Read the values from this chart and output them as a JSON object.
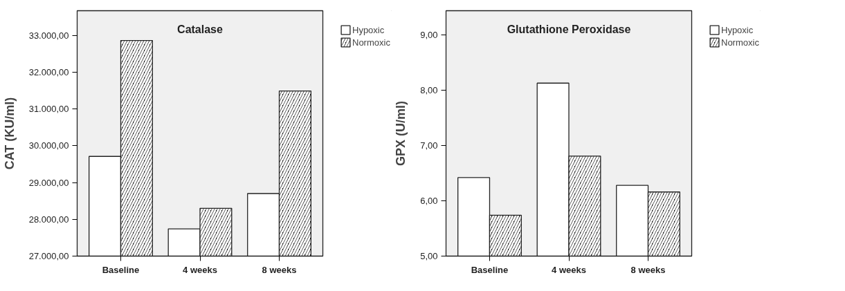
{
  "chart_data": [
    {
      "type": "bar",
      "title": "Catalase",
      "ylabel": "CAT (KU/ml)",
      "categories": [
        "Baseline",
        "4 weeks",
        "8 weeks"
      ],
      "series": [
        {
          "name": "Hypoxic",
          "color": "#ffffff",
          "values": [
            29710,
            27740,
            28700
          ]
        },
        {
          "name": "Normoxic",
          "color": "#000000",
          "values": [
            32860,
            28300,
            31490
          ]
        }
      ],
      "ylim": [
        27000,
        33670
      ],
      "yticks": [
        {
          "value": 27000,
          "label": "27.000,00"
        },
        {
          "value": 28000,
          "label": "28.000,00"
        },
        {
          "value": 29000,
          "label": "29.000,00"
        },
        {
          "value": 30000,
          "label": "30.000,00"
        },
        {
          "value": 31000,
          "label": "31.000,00"
        },
        {
          "value": 32000,
          "label": "32.000,00"
        },
        {
          "value": 33000,
          "label": "33.000,00"
        }
      ],
      "grid": false,
      "legend": "top right"
    },
    {
      "type": "bar",
      "title": "Glutathione Peroxidase",
      "ylabel": "GPX (U/ml)",
      "categories": [
        "Baseline",
        "4 weeks",
        "8 weeks"
      ],
      "series": [
        {
          "name": "Hypoxic",
          "color": "#ffffff",
          "values": [
            6.42,
            8.13,
            6.28
          ]
        },
        {
          "name": "Normoxic",
          "color": "#000000",
          "values": [
            5.74,
            6.81,
            6.16
          ]
        }
      ],
      "ylim": [
        5,
        9.44
      ],
      "yticks": [
        {
          "value": 5,
          "label": "5,00"
        },
        {
          "value": 6,
          "label": "6,00"
        },
        {
          "value": 7,
          "label": "7,00"
        },
        {
          "value": 8,
          "label": "8,00"
        },
        {
          "value": 9,
          "label": "9,00"
        }
      ],
      "grid": false,
      "legend": "top right"
    }
  ]
}
